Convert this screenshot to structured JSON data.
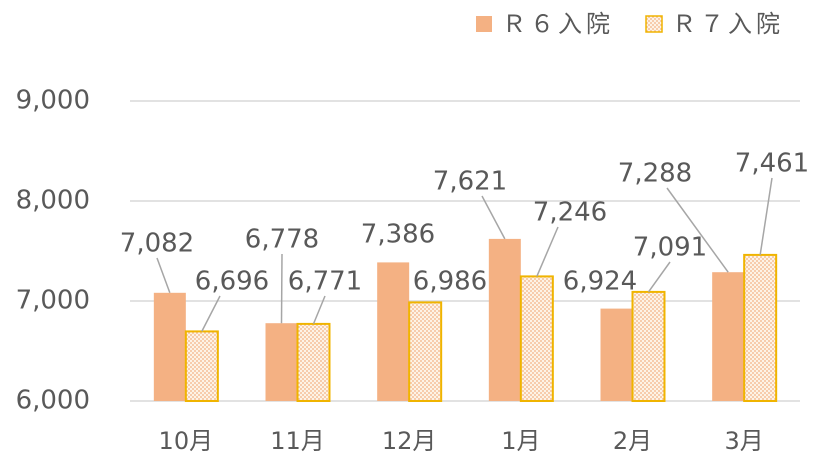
{
  "chart_data": {
    "type": "bar",
    "categories": [
      "10月",
      "11月",
      "12月",
      "1月",
      "2月",
      "3月"
    ],
    "series": [
      {
        "name": "Ｒ６入院",
        "color": "#f4b183",
        "fill": "solid",
        "values": [
          7082,
          6778,
          7386,
          7621,
          6924,
          7288
        ],
        "value_labels": [
          "7,082",
          "6,778",
          "7,386",
          "7,621",
          "6,924",
          "7,288"
        ]
      },
      {
        "name": "Ｒ７入院",
        "color": "#f0b400",
        "fill": "dots",
        "values": [
          6696,
          6771,
          6986,
          7246,
          7091,
          7461
        ],
        "value_labels": [
          "6,696",
          "6,771",
          "6,986",
          "7,246",
          "7,091",
          "7,461"
        ]
      }
    ],
    "ylim": [
      6000,
      9000
    ],
    "yticks": [
      {
        "value": 6000,
        "label": "6,000"
      },
      {
        "value": 7000,
        "label": "7,000"
      },
      {
        "value": 8000,
        "label": "8,000"
      },
      {
        "value": 9000,
        "label": "9,000"
      }
    ],
    "grid": true,
    "legend": "top-right"
  }
}
